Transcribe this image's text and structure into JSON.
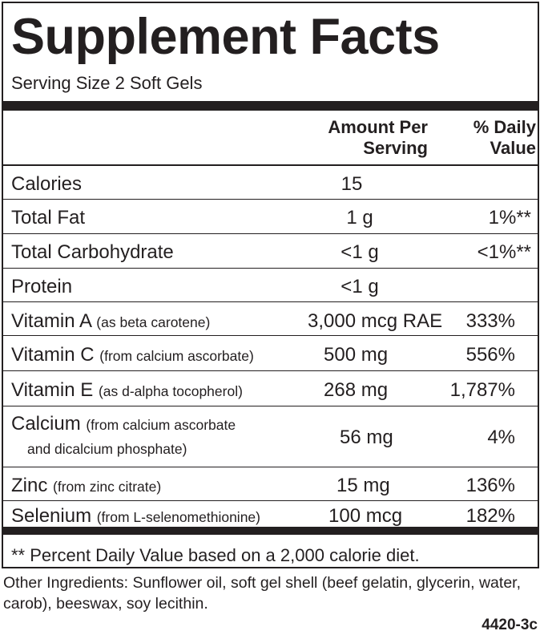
{
  "title": "Supplement Facts",
  "serving_size": "Serving Size 2 Soft Gels",
  "header": {
    "amount_line1": "Amount Per",
    "amount_line2": "Serving",
    "dv_line1": "% Daily",
    "dv_line2": "Value"
  },
  "rows": [
    {
      "name": "Calories",
      "source": "",
      "amount": "15",
      "dv": ""
    },
    {
      "name": "Total Fat",
      "source": "",
      "amount": "1 g",
      "dv": "1%**"
    },
    {
      "name": "Total Carbohydrate",
      "source": "",
      "amount": "<1 g",
      "dv": "<1%**"
    },
    {
      "name": "Protein",
      "source": "",
      "amount": "<1 g",
      "dv": ""
    },
    {
      "name": "Vitamin A",
      "source": "(as beta carotene)",
      "amount": "3,000 mcg RAE",
      "dv": "333%"
    },
    {
      "name": "Vitamin C",
      "source": "(from calcium ascorbate)",
      "amount": "500 mg",
      "dv": "556%"
    },
    {
      "name": "Vitamin E",
      "source": "(as d-alpha tocopherol)",
      "amount": "268 mg",
      "dv": "1,787%"
    },
    {
      "name": "Calcium",
      "source": "(from calcium ascorbate",
      "source_line2": "and dicalcium phosphate)",
      "amount": "56 mg",
      "dv": "4%"
    },
    {
      "name": "Zinc",
      "source": "(from zinc citrate)",
      "amount": "15 mg",
      "dv": "136%"
    },
    {
      "name": "Selenium",
      "source": "(from L-selenomethionine)",
      "amount": "100 mcg",
      "dv": "182%"
    }
  ],
  "footnote": "** Percent Daily Value based on a 2,000 calorie diet.",
  "other_ingredients": "Other Ingredients: Sunflower oil, soft gel shell (beef gelatin, glycerin, water, carob), beeswax, soy lecithin.",
  "code": "4420-3c"
}
